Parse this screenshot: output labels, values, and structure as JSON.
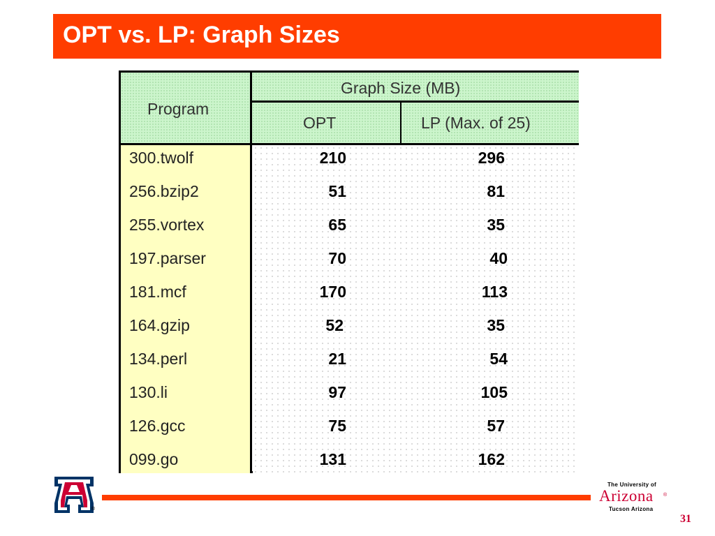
{
  "slide": {
    "title": "OPT vs. LP: Graph Sizes",
    "page_number": "31",
    "accent_color": "#ff3d00",
    "brand_red": "#cc0033"
  },
  "table": {
    "header_program": "Program",
    "header_group": "Graph Size (MB)",
    "header_opt": "OPT",
    "header_lp": "LP (Max. of 25)",
    "rows": [
      {
        "program": "300.twolf",
        "opt": "210",
        "lp": "296"
      },
      {
        "program": "256.bzip2",
        "opt": "51",
        "lp": "81"
      },
      {
        "program": "255.vortex",
        "opt": "65",
        "lp": "35"
      },
      {
        "program": "197.parser",
        "opt": "70",
        "lp": "40"
      },
      {
        "program": "181.mcf",
        "opt": "170",
        "lp": "113"
      },
      {
        "program": "164.gzip",
        "opt": "52",
        "lp": "35"
      },
      {
        "program": "134.perl",
        "opt": "21",
        "lp": "54"
      },
      {
        "program": "130.li",
        "opt": "97",
        "lp": "105"
      },
      {
        "program": "126.gcc",
        "opt": "75",
        "lp": "57"
      },
      {
        "program": "099.go",
        "opt": "131",
        "lp": "162"
      }
    ]
  },
  "footer": {
    "logo_letter": "A",
    "registered_mark": "®",
    "university_line1": "The University of",
    "university_name": "Arizona",
    "university_line3": "Tucson Arizona",
    "university_reg": "®"
  }
}
